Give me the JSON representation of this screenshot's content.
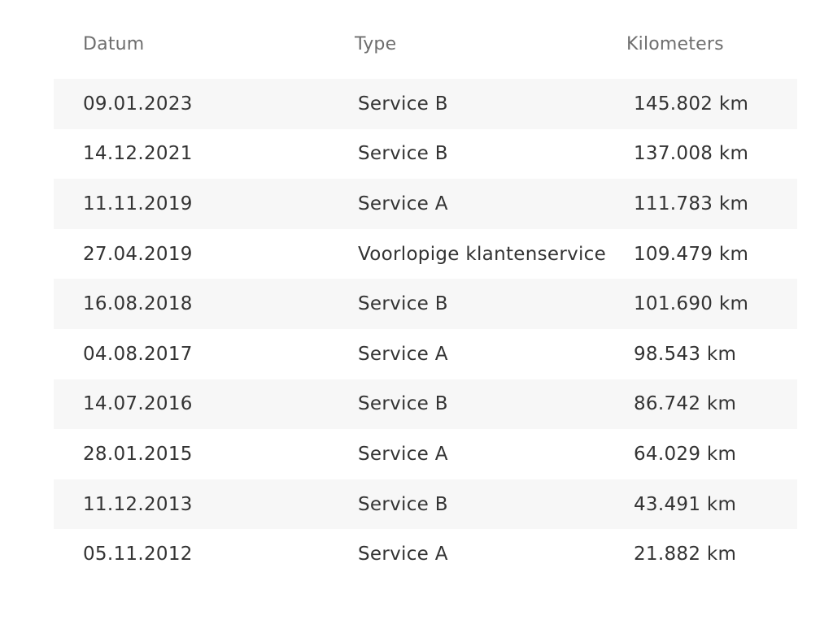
{
  "columns": {
    "date": "Datum",
    "type": "Type",
    "km": "Kilometers"
  },
  "rows": [
    {
      "date": "09.01.2023",
      "type": "Service B",
      "km": "145.802 km"
    },
    {
      "date": "14.12.2021",
      "type": "Service B",
      "km": "137.008 km"
    },
    {
      "date": "11.11.2019",
      "type": "Service A",
      "km": "111.783 km"
    },
    {
      "date": "27.04.2019",
      "type": "Voorlopige klantenservice",
      "km": "109.479 km"
    },
    {
      "date": "16.08.2018",
      "type": "Service B",
      "km": "101.690 km"
    },
    {
      "date": "04.08.2017",
      "type": "Service A",
      "km": "98.543 km"
    },
    {
      "date": "14.07.2016",
      "type": "Service B",
      "km": "86.742 km"
    },
    {
      "date": "28.01.2015",
      "type": "Service A",
      "km": "64.029 km"
    },
    {
      "date": "11.12.2013",
      "type": "Service B",
      "km": "43.491 km"
    },
    {
      "date": "05.11.2012",
      "type": "Service A",
      "km": "21.882 km"
    }
  ]
}
